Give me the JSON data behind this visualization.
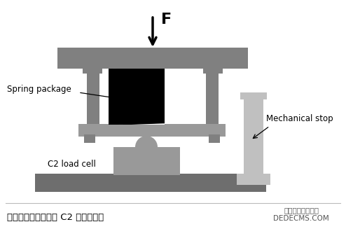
{
  "bg_color": "#ffffff",
  "gray_dark": "#808080",
  "gray_medium": "#999999",
  "gray_light": "#b8b8b8",
  "gray_plate": "#6e6e6e",
  "gray_mech": "#c0c0c0",
  "black": "#000000",
  "white": "#ffffff",
  "title_text": "带有弹簧限位装置的 C2 称重传感器",
  "watermark_line1": "织梦内容管理系统",
  "watermark_line2": "DEDECMS.COM",
  "label_spring": "Spring package",
  "label_load": "C2 load cell",
  "label_mech": "Mechanical stop",
  "force_label": "F",
  "title_fontsize": 9.5,
  "label_fontsize": 8.5,
  "watermark_fontsize": 7.5
}
